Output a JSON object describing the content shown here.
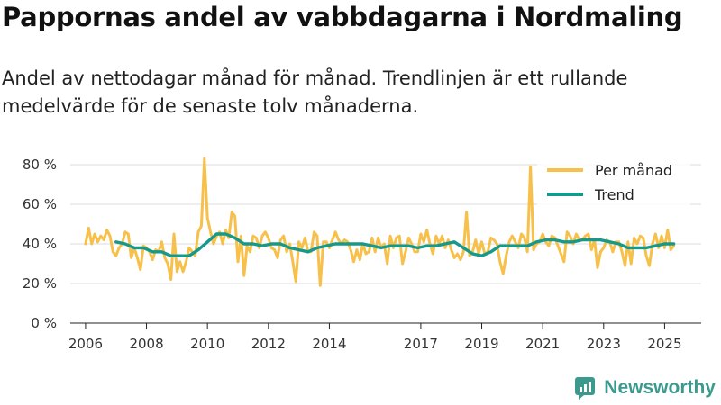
{
  "header": {
    "title": "Pappornas andel av vabbdagarna i Nordmaling",
    "subtitle": "Andel av nettodagar månad för månad. Trendlinjen är ett rullande medelvärde för de senaste tolv månaderna."
  },
  "brand": {
    "name": "Newsworthy",
    "color": "#3b9a8d"
  },
  "chart_data": {
    "type": "line",
    "title": "Pappornas andel av vabbdagarna i Nordmaling",
    "subtitle": "Andel av nettodagar månad för månad. Trendlinjen är ett rullande medelvärde för de senaste tolv månaderna.",
    "xlabel": "",
    "ylabel": "",
    "ylim": [
      0,
      85
    ],
    "xlim": [
      2005.5,
      2026.2
    ],
    "y_ticks": [
      0,
      20,
      40,
      60,
      80
    ],
    "y_tick_labels": [
      "0 %",
      "20 %",
      "40 %",
      "60 %",
      "80 %"
    ],
    "x_ticks": [
      2006,
      2008,
      2010,
      2012,
      2014,
      2017,
      2019,
      2021,
      2023,
      2025
    ],
    "x_tick_labels": [
      "2006",
      "2008",
      "2010",
      "2012",
      "2014",
      "2017",
      "2019",
      "2021",
      "2023",
      "2025"
    ],
    "grid": true,
    "legend": "top-right",
    "series": [
      {
        "name": "Per månad",
        "color": "#f7c04a",
        "x": [
          2006.0,
          2006.1,
          2006.2,
          2006.3,
          2006.4,
          2006.5,
          2006.6,
          2006.7,
          2006.8,
          2006.9,
          2007.0,
          2007.1,
          2007.2,
          2007.3,
          2007.4,
          2007.5,
          2007.6,
          2007.7,
          2007.8,
          2007.9,
          2008.0,
          2008.1,
          2008.2,
          2008.3,
          2008.4,
          2008.5,
          2008.6,
          2008.7,
          2008.8,
          2008.9,
          2009.0,
          2009.1,
          2009.2,
          2009.3,
          2009.4,
          2009.5,
          2009.6,
          2009.7,
          2009.8,
          2009.9,
          2010.0,
          2010.1,
          2010.2,
          2010.3,
          2010.4,
          2010.5,
          2010.6,
          2010.7,
          2010.8,
          2010.9,
          2011.0,
          2011.1,
          2011.2,
          2011.3,
          2011.4,
          2011.5,
          2011.6,
          2011.7,
          2011.8,
          2011.9,
          2012.0,
          2012.1,
          2012.2,
          2012.3,
          2012.4,
          2012.5,
          2012.6,
          2012.7,
          2012.8,
          2012.9,
          2013.0,
          2013.1,
          2013.2,
          2013.3,
          2013.4,
          2013.5,
          2013.6,
          2013.7,
          2013.8,
          2013.9,
          2014.0,
          2014.1,
          2014.2,
          2014.3,
          2014.4,
          2014.5,
          2014.6,
          2014.7,
          2014.8,
          2014.9,
          2015.0,
          2015.1,
          2015.2,
          2015.3,
          2015.4,
          2015.5,
          2015.6,
          2015.7,
          2015.8,
          2015.9,
          2016.0,
          2016.1,
          2016.2,
          2016.3,
          2016.4,
          2016.5,
          2016.6,
          2016.7,
          2016.8,
          2016.9,
          2017.0,
          2017.1,
          2017.2,
          2017.3,
          2017.4,
          2017.5,
          2017.6,
          2017.7,
          2017.8,
          2017.9,
          2018.0,
          2018.1,
          2018.2,
          2018.3,
          2018.4,
          2018.5,
          2018.6,
          2018.7,
          2018.8,
          2018.9,
          2019.0,
          2019.1,
          2019.2,
          2019.3,
          2019.4,
          2019.5,
          2019.6,
          2019.7,
          2019.8,
          2019.9,
          2020.0,
          2020.1,
          2020.2,
          2020.3,
          2020.4,
          2020.5,
          2020.6,
          2020.7,
          2020.8,
          2020.9,
          2021.0,
          2021.1,
          2021.2,
          2021.3,
          2021.4,
          2021.5,
          2021.6,
          2021.7,
          2021.8,
          2021.9,
          2022.0,
          2022.1,
          2022.2,
          2022.3,
          2022.4,
          2022.5,
          2022.6,
          2022.7,
          2022.8,
          2022.9,
          2023.0,
          2023.1,
          2023.2,
          2023.3,
          2023.4,
          2023.5,
          2023.6,
          2023.7,
          2023.8,
          2023.9,
          2024.0,
          2024.1,
          2024.2,
          2024.3,
          2024.4,
          2024.5,
          2024.6,
          2024.7,
          2024.8,
          2024.9,
          2025.0,
          2025.1,
          2025.2,
          2025.3
        ],
        "values": [
          40,
          48,
          40,
          45,
          41,
          44,
          42,
          47,
          44,
          36,
          34,
          38,
          40,
          46,
          45,
          33,
          38,
          33,
          27,
          39,
          38,
          36,
          32,
          37,
          36,
          41,
          33,
          30,
          22,
          45,
          26,
          31,
          26,
          31,
          38,
          36,
          34,
          46,
          49,
          83,
          53,
          46,
          40,
          44,
          46,
          40,
          47,
          43,
          56,
          54,
          31,
          44,
          24,
          39,
          36,
          44,
          43,
          38,
          44,
          46,
          43,
          38,
          37,
          33,
          42,
          44,
          36,
          40,
          31,
          21,
          41,
          38,
          43,
          36,
          36,
          46,
          44,
          19,
          41,
          41,
          38,
          42,
          46,
          42,
          40,
          42,
          41,
          37,
          31,
          37,
          32,
          40,
          35,
          36,
          43,
          36,
          43,
          38,
          40,
          30,
          44,
          38,
          43,
          44,
          30,
          36,
          43,
          40,
          36,
          36,
          45,
          41,
          47,
          40,
          35,
          44,
          40,
          44,
          38,
          42,
          37,
          33,
          35,
          32,
          36,
          56,
          34,
          36,
          42,
          35,
          41,
          35,
          36,
          43,
          42,
          40,
          31,
          25,
          34,
          41,
          44,
          41,
          38,
          45,
          43,
          36,
          79,
          37,
          40,
          41,
          45,
          41,
          39,
          44,
          43,
          39,
          35,
          31,
          46,
          44,
          40,
          45,
          42,
          42,
          44,
          45,
          37,
          42,
          28,
          36,
          38,
          42,
          41,
          36,
          41,
          41,
          36,
          29,
          41,
          30,
          43,
          40,
          44,
          43,
          34,
          29,
          40,
          45,
          38,
          44,
          38,
          47,
          37,
          39
        ]
      },
      {
        "name": "Trend",
        "color": "#14998a",
        "x": [
          2007.0,
          2007.3,
          2007.6,
          2007.9,
          2008.2,
          2008.5,
          2008.8,
          2009.1,
          2009.4,
          2009.7,
          2010.0,
          2010.3,
          2010.6,
          2010.9,
          2011.2,
          2011.5,
          2011.8,
          2012.1,
          2012.4,
          2012.7,
          2013.0,
          2013.3,
          2013.6,
          2013.9,
          2014.2,
          2014.5,
          2014.8,
          2015.1,
          2015.4,
          2015.7,
          2016.0,
          2016.3,
          2016.6,
          2016.9,
          2017.2,
          2017.5,
          2017.8,
          2018.1,
          2018.4,
          2018.7,
          2019.0,
          2019.3,
          2019.6,
          2019.9,
          2020.2,
          2020.5,
          2020.8,
          2021.1,
          2021.4,
          2021.7,
          2022.0,
          2022.3,
          2022.6,
          2022.9,
          2023.2,
          2023.5,
          2023.8,
          2024.1,
          2024.4,
          2024.7,
          2025.0,
          2025.3
        ],
        "values": [
          41,
          40,
          38,
          38,
          36,
          36,
          34,
          34,
          34,
          37,
          41,
          45,
          45,
          43,
          40,
          40,
          39,
          40,
          40,
          38,
          37,
          36,
          38,
          39,
          40,
          40,
          40,
          40,
          39,
          38,
          39,
          39,
          39,
          38,
          39,
          39,
          40,
          41,
          38,
          35,
          34,
          36,
          39,
          39,
          39,
          39,
          41,
          42,
          42,
          41,
          41,
          42,
          42,
          42,
          41,
          40,
          38,
          38,
          38,
          39,
          40,
          40
        ]
      }
    ]
  }
}
